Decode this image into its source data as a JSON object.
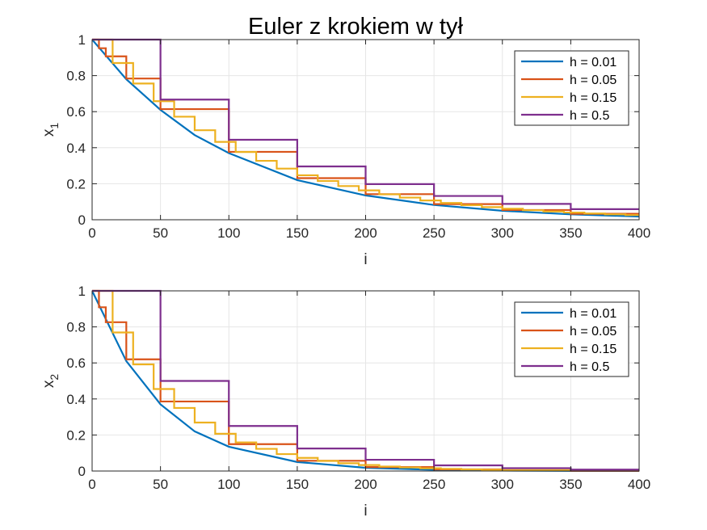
{
  "title": "Euler z krokiem w tył",
  "colors": {
    "h001": "#0072BD",
    "h005": "#D95319",
    "h015": "#EDB120",
    "h05": "#7E2F8E",
    "grid": "#e6e6e6",
    "axis": "#262626"
  },
  "chart_data": [
    {
      "type": "line",
      "style": "step",
      "title": "Euler z krokiem w tył",
      "xlabel": "i",
      "ylabel_main": "x",
      "ylabel_sub": "1",
      "xlim": [
        0,
        400
      ],
      "ylim": [
        0,
        1
      ],
      "xticks": [
        0,
        50,
        100,
        150,
        200,
        250,
        300,
        350,
        400
      ],
      "yticks": [
        0,
        0.2,
        0.4,
        0.6,
        0.8,
        1
      ],
      "yticklabels": [
        "0",
        "0.2",
        "0.4",
        "0.6",
        "0.8",
        "1"
      ],
      "grid": true,
      "legend_position": "top-right",
      "series": [
        {
          "name": "h = 0.01",
          "step_samples": 1,
          "x": [
            0,
            25,
            50,
            75,
            100,
            150,
            200,
            250,
            300,
            350,
            400
          ],
          "y": [
            1,
            0.78,
            0.61,
            0.47,
            0.37,
            0.22,
            0.135,
            0.082,
            0.05,
            0.03,
            0.018
          ]
        },
        {
          "name": "h = 0.05",
          "step_samples": 5,
          "x": [
            0,
            5,
            10,
            25,
            50,
            100,
            150,
            200,
            250,
            300,
            350,
            400
          ],
          "y": [
            1,
            0.952,
            0.907,
            0.784,
            0.614,
            0.377,
            0.231,
            0.142,
            0.087,
            0.054,
            0.033,
            0.02
          ]
        },
        {
          "name": "h = 0.15",
          "step_samples": 15,
          "x": [
            0,
            15,
            30,
            45,
            60,
            75,
            90,
            105,
            120,
            135,
            150,
            165,
            180,
            195,
            210,
            225,
            240,
            255,
            270,
            285,
            300,
            315,
            330,
            345,
            360,
            375,
            390
          ],
          "y": [
            1,
            0.87,
            0.756,
            0.658,
            0.572,
            0.497,
            0.432,
            0.376,
            0.327,
            0.284,
            0.247,
            0.215,
            0.187,
            0.163,
            0.141,
            0.123,
            0.107,
            0.093,
            0.081,
            0.07,
            0.061,
            0.053,
            0.046,
            0.04,
            0.035,
            0.03,
            0.026
          ]
        },
        {
          "name": "h = 0.5",
          "step_samples": 50,
          "x": [
            0,
            50,
            100,
            150,
            200,
            250,
            300,
            350
          ],
          "y": [
            1,
            0.667,
            0.444,
            0.296,
            0.198,
            0.132,
            0.088,
            0.059
          ]
        }
      ]
    },
    {
      "type": "line",
      "style": "step",
      "title": "",
      "xlabel": "i",
      "ylabel_main": "x",
      "ylabel_sub": "2",
      "xlim": [
        0,
        400
      ],
      "ylim": [
        0,
        1
      ],
      "xticks": [
        0,
        50,
        100,
        150,
        200,
        250,
        300,
        350,
        400
      ],
      "yticks": [
        0,
        0.2,
        0.4,
        0.6,
        0.8,
        1
      ],
      "yticklabels": [
        "0",
        "0.2",
        "0.4",
        "0.6",
        "0.8",
        "1"
      ],
      "grid": true,
      "legend_position": "top-right",
      "series": [
        {
          "name": "h = 0.01",
          "step_samples": 1,
          "x": [
            0,
            25,
            50,
            75,
            100,
            150,
            200,
            250,
            300,
            350,
            400
          ],
          "y": [
            1,
            0.61,
            0.37,
            0.22,
            0.135,
            0.05,
            0.018,
            0.007,
            0.0025,
            0.001,
            0.0003
          ]
        },
        {
          "name": "h = 0.05",
          "step_samples": 5,
          "x": [
            0,
            5,
            10,
            25,
            50,
            100,
            150,
            200,
            250,
            300,
            350,
            400
          ],
          "y": [
            1,
            0.909,
            0.826,
            0.62,
            0.386,
            0.149,
            0.057,
            0.022,
            0.009,
            0.003,
            0.001,
            0.0005
          ]
        },
        {
          "name": "h = 0.15",
          "step_samples": 15,
          "x": [
            0,
            15,
            30,
            45,
            60,
            75,
            90,
            105,
            120,
            135,
            150,
            165,
            180,
            195,
            210,
            225,
            240,
            255,
            270,
            285,
            300
          ],
          "y": [
            1,
            0.769,
            0.592,
            0.455,
            0.35,
            0.269,
            0.207,
            0.159,
            0.123,
            0.094,
            0.073,
            0.056,
            0.043,
            0.033,
            0.025,
            0.02,
            0.015,
            0.012,
            0.009,
            0.007,
            0.005
          ]
        },
        {
          "name": "h = 0.5",
          "step_samples": 50,
          "x": [
            0,
            50,
            100,
            150,
            200,
            250,
            300,
            350
          ],
          "y": [
            1,
            0.5,
            0.25,
            0.125,
            0.0625,
            0.03125,
            0.0156,
            0.0078
          ]
        }
      ]
    }
  ]
}
